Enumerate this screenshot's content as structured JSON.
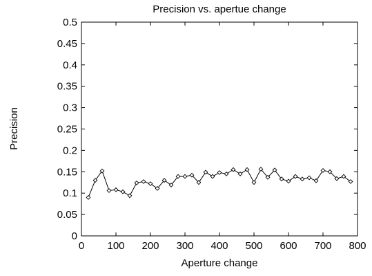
{
  "chart_data": {
    "type": "line",
    "title": "Precision vs. apertue change",
    "xlabel": "Aperture change",
    "ylabel": "Precision",
    "xlim": [
      0,
      800
    ],
    "ylim": [
      0,
      0.5
    ],
    "grid": false,
    "legend": "none",
    "x_ticks": [
      "0",
      "100",
      "200",
      "300",
      "400",
      "500",
      "600",
      "700",
      "800"
    ],
    "y_ticks": [
      "0",
      "0.05",
      "0.1",
      "0.15",
      "0.2",
      "0.25",
      "0.3",
      "0.35",
      "0.4",
      "0.45",
      "0.5"
    ],
    "marker": "diamond",
    "line_color": "#000000",
    "series": [
      {
        "x": [
          20,
          40,
          60,
          80,
          100,
          120,
          140,
          160,
          180,
          200,
          220,
          240,
          260,
          280,
          300,
          320,
          340,
          360,
          380,
          400,
          420,
          440,
          460,
          480,
          500,
          520,
          540,
          560,
          580,
          600,
          620,
          640,
          660,
          680,
          700,
          720,
          740,
          760,
          780
        ],
        "values": [
          0.09,
          0.13,
          0.152,
          0.106,
          0.108,
          0.103,
          0.094,
          0.124,
          0.127,
          0.122,
          0.111,
          0.13,
          0.119,
          0.139,
          0.139,
          0.142,
          0.125,
          0.149,
          0.139,
          0.148,
          0.145,
          0.155,
          0.145,
          0.155,
          0.125,
          0.156,
          0.137,
          0.154,
          0.133,
          0.128,
          0.139,
          0.133,
          0.136,
          0.129,
          0.153,
          0.15,
          0.134,
          0.139,
          0.127
        ]
      }
    ]
  }
}
